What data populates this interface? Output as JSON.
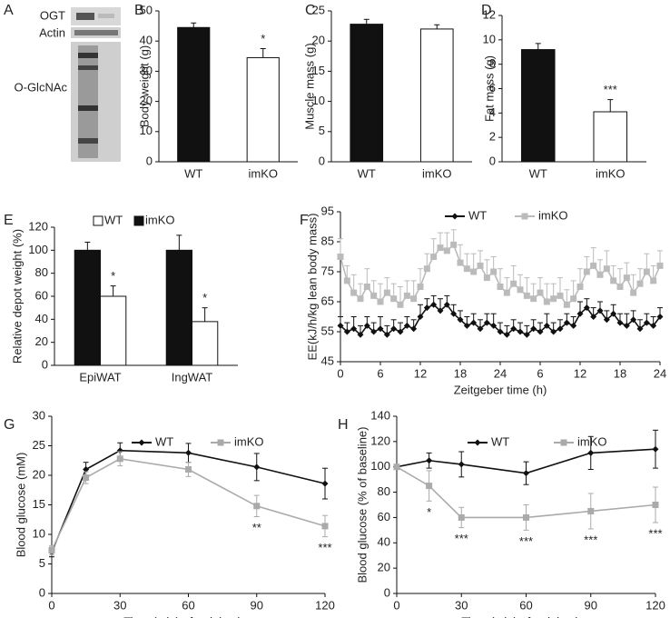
{
  "panel_a": {
    "label": "A",
    "rows": [
      "OGT",
      "Actin",
      "O-GlcNAc"
    ]
  },
  "chart_data": [
    {
      "type": "bar",
      "label": "B",
      "ylabel": "Body weight (g)",
      "categories": [
        "WT",
        "imKO"
      ],
      "values": [
        44.5,
        34.5
      ],
      "errors": [
        1.5,
        3
      ],
      "colors": [
        "#111111",
        "#ffffff"
      ],
      "error_bars": "up",
      "ylim": [
        0,
        50
      ],
      "yticks": [
        0,
        10,
        20,
        30,
        40,
        50
      ],
      "annotations": [
        {
          "text": "*",
          "category": "imKO"
        }
      ]
    },
    {
      "type": "bar",
      "label": "C",
      "ylabel": "Muscle mass (g)",
      "categories": [
        "WT",
        "imKO"
      ],
      "values": [
        22.8,
        22.0
      ],
      "errors": [
        0.8,
        0.7
      ],
      "colors": [
        "#111111",
        "#ffffff"
      ],
      "error_bars": "up",
      "ylim": [
        0,
        25
      ],
      "yticks": [
        0,
        5,
        10,
        15,
        20,
        25
      ],
      "annotations": []
    },
    {
      "type": "bar",
      "label": "D",
      "ylabel": "Fat mass (g)",
      "categories": [
        "WT",
        "imKO"
      ],
      "values": [
        9.2,
        4.1
      ],
      "errors": [
        0.5,
        1.0
      ],
      "colors": [
        "#111111",
        "#ffffff"
      ],
      "error_bars": "up",
      "ylim": [
        0,
        12
      ],
      "yticks": [
        0,
        2,
        4,
        6,
        8,
        10,
        12
      ],
      "annotations": [
        {
          "text": "***",
          "category": "imKO"
        }
      ]
    },
    {
      "type": "bar",
      "label": "E",
      "ylabel": "Relative depot weight (%)",
      "categories": [
        "EpiWAT",
        "IngWAT"
      ],
      "series": [
        {
          "name": "WT",
          "color": "#ffffff",
          "values": [
            60,
            38
          ],
          "errors": [
            9,
            12
          ]
        },
        {
          "name": "imKO",
          "color": "#111111",
          "values": [
            100,
            100
          ],
          "errors": [
            7,
            13
          ]
        }
      ],
      "error_bars": "up",
      "legend": "top",
      "ylim": [
        0,
        120
      ],
      "yticks": [
        0,
        20,
        40,
        60,
        80,
        100,
        120
      ],
      "annotations": [
        {
          "text": "*",
          "category": "EpiWAT"
        },
        {
          "text": "*",
          "category": "IngWAT"
        }
      ]
    },
    {
      "type": "line",
      "label": "F",
      "ylabel": "EE(kJ/h/kg lean body mass)",
      "xlabel": "Zeitgeber time (h)",
      "legend": "top",
      "error_bars": "up",
      "x": [
        0,
        1,
        2,
        3,
        4,
        5,
        6,
        7,
        8,
        9,
        10,
        11,
        12,
        13,
        14,
        15,
        16,
        17,
        18,
        19,
        20,
        21,
        22,
        23,
        24,
        25,
        26,
        27,
        28,
        29,
        30,
        31,
        32,
        33,
        34,
        35,
        36,
        37,
        38,
        39,
        40,
        41,
        42,
        43,
        44,
        45,
        46,
        47,
        48
      ],
      "series": [
        {
          "name": "WT",
          "color": "#111111",
          "marker": "diamond",
          "values": [
            57,
            55,
            56,
            54,
            57,
            55,
            56,
            54,
            56,
            55,
            57,
            56,
            60,
            63,
            64,
            62,
            64,
            61,
            59,
            57,
            58,
            56,
            58,
            57,
            55,
            54,
            56,
            55,
            54,
            56,
            55,
            57,
            55,
            56,
            58,
            57,
            61,
            63,
            60,
            62,
            59,
            61,
            58,
            57,
            59,
            56,
            58,
            57,
            60
          ],
          "errors": [
            3,
            3,
            4,
            3,
            3,
            3,
            4,
            3,
            3,
            3,
            3,
            3,
            4,
            3,
            3,
            4,
            3,
            3,
            3,
            3,
            3,
            3,
            3,
            4,
            3,
            3,
            3,
            3,
            3,
            3,
            3,
            4,
            3,
            3,
            3,
            3,
            4,
            3,
            3,
            3,
            3,
            3,
            3,
            4,
            3,
            3,
            3,
            3,
            3
          ]
        },
        {
          "name": "imKO",
          "color": "#bbbbbb",
          "marker": "square",
          "values": [
            80,
            72,
            68,
            66,
            70,
            67,
            65,
            68,
            66,
            64,
            67,
            66,
            70,
            76,
            80,
            83,
            82,
            84,
            78,
            76,
            75,
            77,
            73,
            75,
            70,
            68,
            71,
            69,
            67,
            66,
            68,
            65,
            66,
            67,
            64,
            66,
            70,
            75,
            77,
            74,
            76,
            72,
            70,
            73,
            68,
            71,
            75,
            72,
            77
          ],
          "errors": [
            6,
            5,
            6,
            5,
            6,
            5,
            6,
            5,
            5,
            6,
            5,
            6,
            6,
            5,
            6,
            5,
            6,
            5,
            6,
            5,
            6,
            5,
            6,
            5,
            6,
            5,
            6,
            5,
            6,
            5,
            5,
            6,
            5,
            6,
            5,
            6,
            6,
            5,
            6,
            5,
            6,
            5,
            6,
            5,
            6,
            5,
            6,
            5,
            5
          ]
        }
      ],
      "xlim": [
        0,
        48
      ],
      "xticks": [
        0,
        6,
        12,
        18,
        24,
        {
          "value": 30,
          "label": "6"
        },
        {
          "value": 36,
          "label": "12"
        },
        {
          "value": 42,
          "label": "18"
        },
        {
          "value": 48,
          "label": "24"
        }
      ],
      "ylim": [
        45,
        95
      ],
      "yticks": [
        45,
        55,
        65,
        75,
        85,
        95
      ],
      "annotations": []
    },
    {
      "type": "line",
      "label": "G",
      "ylabel": "Blood glucose (mM)",
      "xlabel": "Time (min) after injection",
      "legend": "top",
      "error_bars": "both",
      "x": [
        0,
        15,
        30,
        60,
        90,
        120
      ],
      "series": [
        {
          "name": "WT",
          "color": "#111111",
          "marker": "diamond",
          "values": [
            7,
            21,
            24.2,
            23.8,
            21.4,
            18.6
          ],
          "errors": [
            0.8,
            1.2,
            1.3,
            1.6,
            2.3,
            2.6
          ]
        },
        {
          "name": "imKO",
          "color": "#aaaaaa",
          "marker": "square",
          "values": [
            7.3,
            19.6,
            22.8,
            21,
            14.8,
            11.4
          ],
          "errors": [
            0.8,
            1,
            1.2,
            1.2,
            1.8,
            1.8
          ]
        }
      ],
      "xlim": [
        0,
        120
      ],
      "xticks": [
        0,
        30,
        60,
        90,
        120
      ],
      "ylim": [
        0,
        30
      ],
      "yticks": [
        0,
        5,
        10,
        15,
        20,
        25,
        30
      ],
      "annotations": [
        {
          "text": "**",
          "x": 90
        },
        {
          "text": "***",
          "x": 120
        }
      ]
    },
    {
      "type": "line",
      "label": "H",
      "ylabel": "Blood glucose (% of baseline)",
      "xlabel": "Time (min) after injection",
      "legend": "top",
      "error_bars": "both",
      "x": [
        0,
        15,
        30,
        60,
        90,
        120
      ],
      "series": [
        {
          "name": "WT",
          "color": "#111111",
          "marker": "diamond",
          "values": [
            100,
            105,
            102,
            95,
            111,
            114
          ],
          "errors": [
            0,
            6,
            10,
            9,
            13,
            15
          ]
        },
        {
          "name": "imKO",
          "color": "#aaaaaa",
          "marker": "square",
          "values": [
            100,
            85,
            60,
            60,
            65,
            70
          ],
          "errors": [
            0,
            12,
            8,
            10,
            14,
            14
          ]
        }
      ],
      "xlim": [
        0,
        120
      ],
      "xticks": [
        0,
        30,
        60,
        90,
        120
      ],
      "ylim": [
        0,
        140
      ],
      "yticks": [
        0,
        20,
        40,
        60,
        80,
        100,
        120,
        140
      ],
      "annotations": [
        {
          "text": "*",
          "x": 15
        },
        {
          "text": "***",
          "x": 30
        },
        {
          "text": "***",
          "x": 60
        },
        {
          "text": "***",
          "x": 90
        },
        {
          "text": "***",
          "x": 120
        }
      ]
    }
  ]
}
